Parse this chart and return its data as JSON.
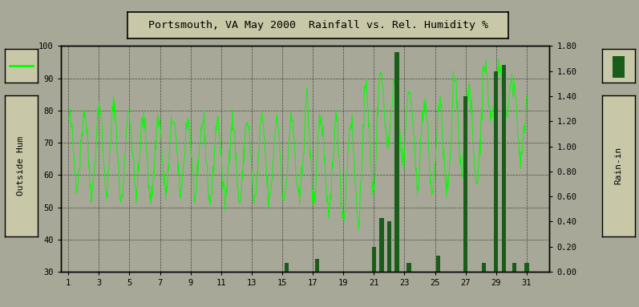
{
  "title": "Portsmouth, VA May 2000  Rainfall vs. Rel. Humidity %",
  "ylabel_left": "Outside Hum",
  "ylabel_right": "Rain-in",
  "ylim_left": [
    30,
    100
  ],
  "ylim_right": [
    0.0,
    1.8
  ],
  "yticks_left": [
    30,
    40,
    50,
    60,
    70,
    80,
    90,
    100
  ],
  "yticks_right": [
    0.0,
    0.2,
    0.4,
    0.6,
    0.8,
    1.0,
    1.2,
    1.4,
    1.6,
    1.8
  ],
  "xticks": [
    1,
    3,
    5,
    7,
    9,
    11,
    13,
    15,
    17,
    19,
    21,
    23,
    25,
    27,
    29,
    31
  ],
  "xlim": [
    0.5,
    32.5
  ],
  "background_color": "#a8a898",
  "plot_bg_color": "#a8a898",
  "grid_color": "#000000",
  "line_color": "#00ff00",
  "bar_color": "#1a5c1a",
  "title_box_color": "#c8c8a8",
  "panel_color": "#c8c8a8",
  "bar_positions": [
    15.3,
    17.3,
    21.0,
    21.5,
    22.0,
    22.5,
    23.3,
    25.2,
    27.0,
    28.2,
    29.0,
    29.5,
    30.2,
    31.0
  ],
  "bar_heights": [
    0.07,
    0.1,
    0.2,
    0.43,
    0.4,
    1.75,
    0.07,
    0.13,
    1.4,
    0.07,
    1.6,
    1.65,
    0.07,
    0.07
  ],
  "bar_width": 0.28
}
